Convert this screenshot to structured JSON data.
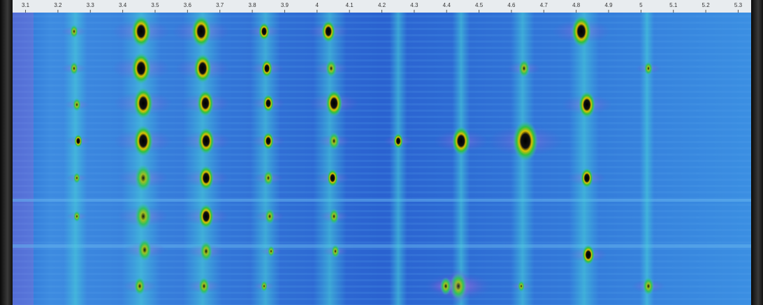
{
  "chart_data": {
    "type": "heatmap",
    "xlim": [
      3.06,
      5.34
    ],
    "xticks": [
      3.1,
      3.2,
      3.3,
      3.4,
      3.5,
      3.6,
      3.7,
      3.8,
      3.9,
      4,
      4.1,
      4.2,
      4.3,
      4.4,
      4.5,
      4.6,
      4.7,
      4.8,
      4.9,
      5,
      5.1,
      5.2,
      5.3
    ]
  }
}
